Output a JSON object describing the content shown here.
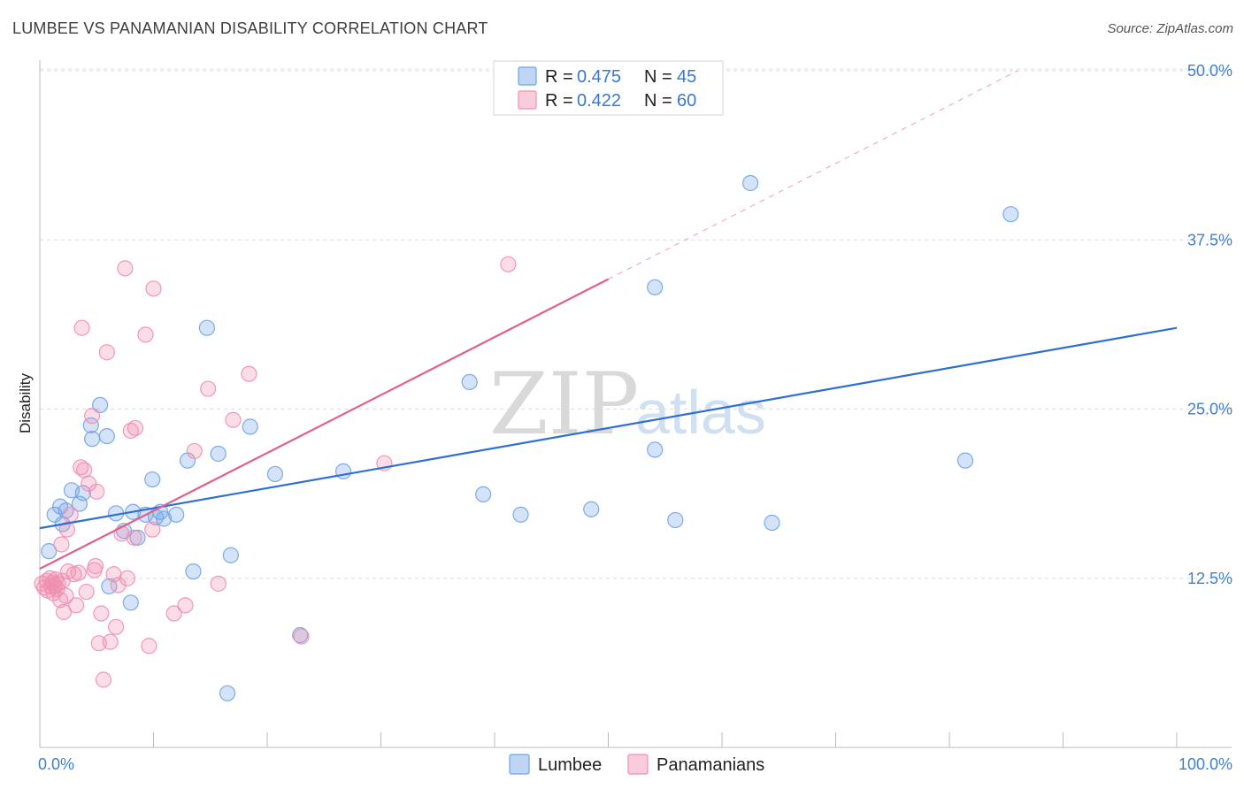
{
  "header": {
    "title": "LUMBEE VS PANAMANIAN DISABILITY CORRELATION CHART",
    "source": "Source: ZipAtlas.com"
  },
  "colors": {
    "lumbee": "#6fa3e6",
    "lumbee_line": "#2f6fcf",
    "panamanian": "#f08fae",
    "panamanian_line": "#e0608c",
    "tick": "#3f7fcf"
  },
  "watermark": {
    "zip": "ZIP",
    "atlas": "atlas"
  },
  "chart_data": {
    "type": "scatter",
    "title": "LUMBEE VS PANAMANIAN DISABILITY CORRELATION CHART",
    "xlabel": "",
    "ylabel": "Disability",
    "xlim": [
      0,
      100
    ],
    "ylim": [
      0,
      50
    ],
    "x_tick_labels": [
      "0.0%",
      "100.0%"
    ],
    "y_ticks": [
      12.5,
      25.0,
      37.5,
      50.0
    ],
    "y_tick_labels": [
      "12.5%",
      "25.0%",
      "37.5%",
      "50.0%"
    ],
    "grid": true,
    "legend_top": [
      {
        "r_label": "R = ",
        "r_value": "0.475",
        "n_label": "N = ",
        "n_value": "45"
      },
      {
        "r_label": "R = ",
        "r_value": "0.422",
        "n_label": "N = ",
        "n_value": "60"
      }
    ],
    "legend_bottom": [
      "Lumbee",
      "Panamanians"
    ],
    "series": [
      {
        "name": "Lumbee",
        "trend": {
          "x0": 0,
          "y0": 16.2,
          "x1": 100,
          "y1": 31.0,
          "dashed_to": null
        },
        "points": [
          [
            0.8,
            14.5
          ],
          [
            1.3,
            17.2
          ],
          [
            1.8,
            17.8
          ],
          [
            2.3,
            17.5
          ],
          [
            2.8,
            19.0
          ],
          [
            3.5,
            18.0
          ],
          [
            3.8,
            18.8
          ],
          [
            4.5,
            23.8
          ],
          [
            4.6,
            22.8
          ],
          [
            5.3,
            25.3
          ],
          [
            5.9,
            23.0
          ],
          [
            6.7,
            17.3
          ],
          [
            7.4,
            16.0
          ],
          [
            8.2,
            17.4
          ],
          [
            8.6,
            15.5
          ],
          [
            9.3,
            17.2
          ],
          [
            9.9,
            19.8
          ],
          [
            10.6,
            17.4
          ],
          [
            10.9,
            16.9
          ],
          [
            12.0,
            17.2
          ],
          [
            6.1,
            11.9
          ],
          [
            8.0,
            10.7
          ],
          [
            13.0,
            21.2
          ],
          [
            13.5,
            13.0
          ],
          [
            14.7,
            31.0
          ],
          [
            15.7,
            21.7
          ],
          [
            16.5,
            4.0
          ],
          [
            16.8,
            14.2
          ],
          [
            18.5,
            23.7
          ],
          [
            20.7,
            20.2
          ],
          [
            22.9,
            8.3
          ],
          [
            26.7,
            20.4
          ],
          [
            37.8,
            27.0
          ],
          [
            39.0,
            18.7
          ],
          [
            42.3,
            17.2
          ],
          [
            48.5,
            17.6
          ],
          [
            54.1,
            34.0
          ],
          [
            54.1,
            22.0
          ],
          [
            55.9,
            16.8
          ],
          [
            62.5,
            41.7
          ],
          [
            64.4,
            16.6
          ],
          [
            81.4,
            21.2
          ],
          [
            85.4,
            39.4
          ],
          [
            10.2,
            17.0
          ],
          [
            2.0,
            16.5
          ]
        ]
      },
      {
        "name": "Panamanians",
        "trend": {
          "x0": 0,
          "y0": 13.2,
          "x1": 50,
          "y1": 34.6,
          "dashed_to": {
            "x": 86,
            "y": 50
          }
        },
        "points": [
          [
            0.2,
            12.1
          ],
          [
            0.4,
            11.8
          ],
          [
            0.6,
            12.3
          ],
          [
            0.7,
            11.6
          ],
          [
            0.9,
            12.5
          ],
          [
            1.0,
            11.9
          ],
          [
            1.1,
            12.2
          ],
          [
            1.2,
            11.4
          ],
          [
            1.3,
            12.0
          ],
          [
            1.4,
            12.4
          ],
          [
            1.5,
            11.7
          ],
          [
            1.6,
            12.1
          ],
          [
            1.8,
            10.9
          ],
          [
            2.0,
            12.3
          ],
          [
            2.1,
            10.0
          ],
          [
            2.3,
            11.2
          ],
          [
            2.5,
            13.0
          ],
          [
            2.7,
            17.2
          ],
          [
            3.0,
            12.8
          ],
          [
            3.2,
            10.5
          ],
          [
            3.4,
            12.9
          ],
          [
            3.6,
            20.7
          ],
          [
            3.7,
            31.0
          ],
          [
            3.9,
            20.5
          ],
          [
            4.1,
            11.5
          ],
          [
            4.3,
            19.5
          ],
          [
            4.6,
            24.5
          ],
          [
            4.8,
            13.1
          ],
          [
            4.9,
            13.4
          ],
          [
            5.0,
            18.9
          ],
          [
            5.2,
            7.7
          ],
          [
            5.4,
            9.9
          ],
          [
            5.6,
            5.0
          ],
          [
            5.9,
            29.2
          ],
          [
            6.2,
            7.8
          ],
          [
            6.5,
            12.8
          ],
          [
            6.7,
            8.9
          ],
          [
            6.9,
            12.0
          ],
          [
            7.2,
            15.8
          ],
          [
            7.5,
            35.4
          ],
          [
            7.7,
            12.5
          ],
          [
            8.0,
            23.4
          ],
          [
            8.4,
            23.6
          ],
          [
            8.3,
            15.5
          ],
          [
            9.3,
            30.5
          ],
          [
            9.6,
            7.5
          ],
          [
            9.9,
            16.1
          ],
          [
            10.0,
            33.9
          ],
          [
            11.8,
            9.9
          ],
          [
            12.8,
            10.5
          ],
          [
            13.6,
            21.9
          ],
          [
            14.8,
            26.5
          ],
          [
            15.7,
            12.1
          ],
          [
            17.0,
            24.2
          ],
          [
            18.4,
            27.6
          ],
          [
            23.0,
            8.2
          ],
          [
            30.3,
            21.0
          ],
          [
            41.2,
            35.7
          ],
          [
            1.9,
            15.0
          ],
          [
            2.4,
            16.1
          ]
        ]
      }
    ]
  }
}
